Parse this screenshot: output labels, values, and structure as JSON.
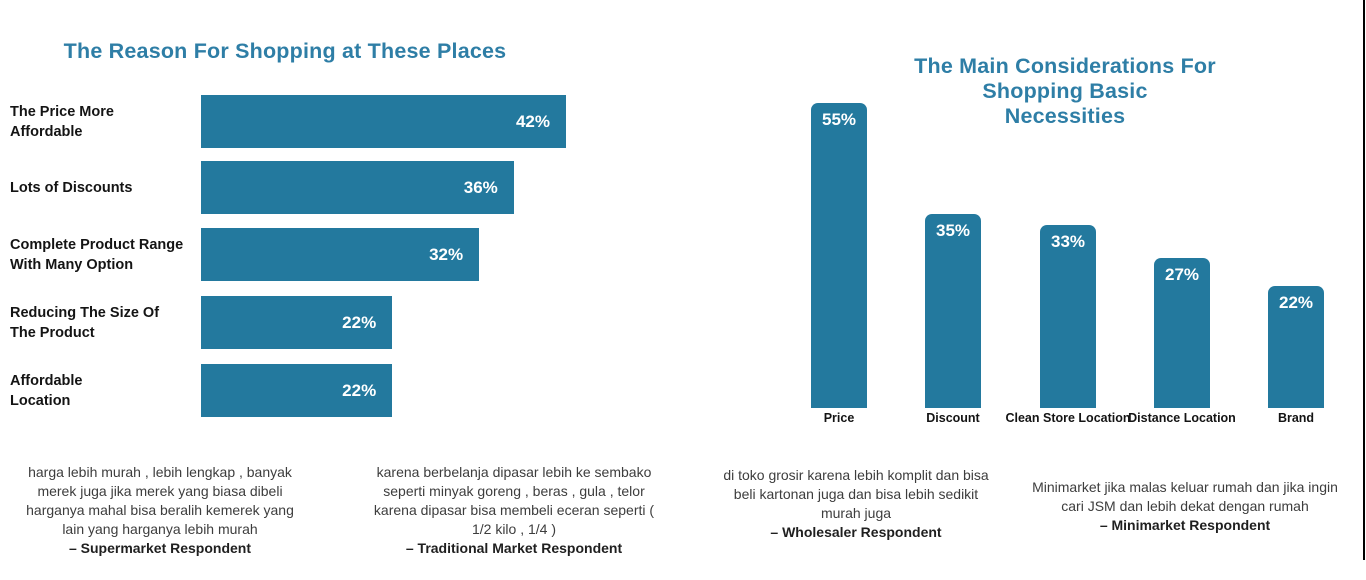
{
  "colors": {
    "bar_fill": "#23799e",
    "title_text": "#2e7ea6",
    "value_label_text": "#ffffff",
    "category_label_text": "#141414",
    "quote_text": "#3d3d3d",
    "background": "#ffffff",
    "edge_line": "#000000"
  },
  "left_chart": {
    "title": "The Reason For Shopping at These Places",
    "bars": [
      {
        "label_lines": [
          "The Price More",
          "Affordable"
        ],
        "value": 42,
        "value_label": "42%"
      },
      {
        "label_lines": [
          "Lots of Discounts"
        ],
        "value": 36,
        "value_label": "36%"
      },
      {
        "label_lines": [
          "Complete Product Range",
          "With Many Option"
        ],
        "value": 32,
        "value_label": "32%"
      },
      {
        "label_lines": [
          "Reducing The Size Of",
          "The Product"
        ],
        "value": 22,
        "value_label": "22%"
      },
      {
        "label_lines": [
          "Affordable",
          "Location"
        ],
        "value": 22,
        "value_label": "22%"
      }
    ],
    "quotes": [
      {
        "text": "harga lebih murah , lebih lengkap , banyak merek juga jika merek yang biasa dibeli harganya mahal bisa beralih kemerek yang lain yang harganya lebih murah",
        "attribution": "– Supermarket Respondent"
      },
      {
        "text": "karena berbelanja dipasar lebih ke sembako seperti minyak goreng , beras , gula , telor karena dipasar bisa membeli eceran seperti ( 1/2 kilo , 1/4 )",
        "attribution": "– Traditional Market Respondent"
      }
    ]
  },
  "right_chart": {
    "title_lines": [
      "The Main Considerations For Shopping Basic",
      "Necessities"
    ],
    "bars": [
      {
        "label": "Price",
        "value": 55,
        "value_label": "55%"
      },
      {
        "label": "Discount",
        "value": 35,
        "value_label": "35%"
      },
      {
        "label": "Clean Store Location",
        "value": 33,
        "value_label": "33%"
      },
      {
        "label": "Distance Location",
        "value": 27,
        "value_label": "27%"
      },
      {
        "label": "Brand",
        "value": 22,
        "value_label": "22%"
      }
    ],
    "quotes": [
      {
        "text": "di toko grosir karena lebih komplit dan bisa beli kartonan juga dan bisa lebih sedikit murah juga",
        "attribution": "– Wholesaler Respondent"
      },
      {
        "text": "Minimarket jika malas keluar rumah dan jika ingin cari JSM dan lebih dekat dengan rumah",
        "attribution": "– Minimarket Respondent"
      }
    ]
  },
  "chart_data": [
    {
      "type": "bar",
      "orientation": "horizontal",
      "title": "The Reason For Shopping at These Places",
      "categories": [
        "The Price More Affordable",
        "Lots of Discounts",
        "Complete Product Range With Many Option",
        "Reducing The Size Of The Product",
        "Affordable Location"
      ],
      "values": [
        42,
        36,
        32,
        22,
        22
      ],
      "data_labels": [
        "42%",
        "36%",
        "32%",
        "22%",
        "22%"
      ],
      "unit": "percent",
      "xlabel": "",
      "ylabel": "",
      "xlim": [
        0,
        45
      ],
      "grid": false,
      "axes_visible": false,
      "legend": false,
      "bar_color": "#23799e",
      "annotations": [
        "harga lebih murah , lebih lengkap , banyak merek juga jika merek yang biasa dibeli harganya mahal bisa beralih kemerek yang lain yang harganya lebih murah – Supermarket Respondent",
        "karena berbelanja dipasar lebih ke sembako seperti minyak goreng , beras , gula , telor karena dipasar bisa membeli eceran seperti ( 1/2 kilo , 1/4 ) – Traditional Market Respondent"
      ]
    },
    {
      "type": "bar",
      "orientation": "vertical",
      "title": "The Main Considerations For Shopping Basic Necessities",
      "categories": [
        "Price",
        "Discount",
        "Clean Store Location",
        "Distance Location",
        "Brand"
      ],
      "values": [
        55,
        35,
        33,
        27,
        22
      ],
      "data_labels": [
        "55%",
        "35%",
        "33%",
        "27%",
        "22%"
      ],
      "unit": "percent",
      "xlabel": "",
      "ylabel": "",
      "ylim": [
        0,
        60
      ],
      "grid": false,
      "axes_visible": false,
      "legend": false,
      "bar_color": "#23799e",
      "annotations": [
        "di toko grosir karena lebih komplit dan bisa beli kartonan juga dan bisa lebih sedikit murah juga – Wholesaler Respondent",
        "Minimarket jika malas keluar rumah dan jika ingin cari JSM dan lebih dekat dengan rumah – Minimarket Respondent"
      ]
    }
  ]
}
